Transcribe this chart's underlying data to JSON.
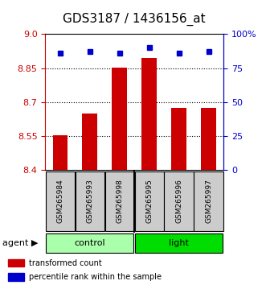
{
  "title": "GDS3187 / 1436156_at",
  "samples": [
    "GSM265984",
    "GSM265993",
    "GSM265998",
    "GSM265995",
    "GSM265996",
    "GSM265997"
  ],
  "bar_values": [
    8.553,
    8.648,
    8.852,
    8.895,
    8.675,
    8.675
  ],
  "percentile_values": [
    86,
    87,
    86,
    90,
    86,
    87
  ],
  "ymin": 8.4,
  "ymax": 9.0,
  "yticks_left": [
    8.4,
    8.55,
    8.7,
    8.85,
    9.0
  ],
  "yticks_right": [
    0,
    25,
    50,
    75,
    100
  ],
  "hlines": [
    8.55,
    8.7,
    8.85
  ],
  "bar_color": "#cc0000",
  "dot_color": "#0000cc",
  "groups": [
    {
      "label": "control",
      "indices": [
        0,
        1,
        2
      ],
      "color": "#aaffaa"
    },
    {
      "label": "light",
      "indices": [
        3,
        4,
        5
      ],
      "color": "#00dd00"
    }
  ],
  "sample_box_color": "#cccccc",
  "agent_label": "agent",
  "legend_items": [
    {
      "label": "transformed count",
      "color": "#cc0000"
    },
    {
      "label": "percentile rank within the sample",
      "color": "#0000cc"
    }
  ]
}
